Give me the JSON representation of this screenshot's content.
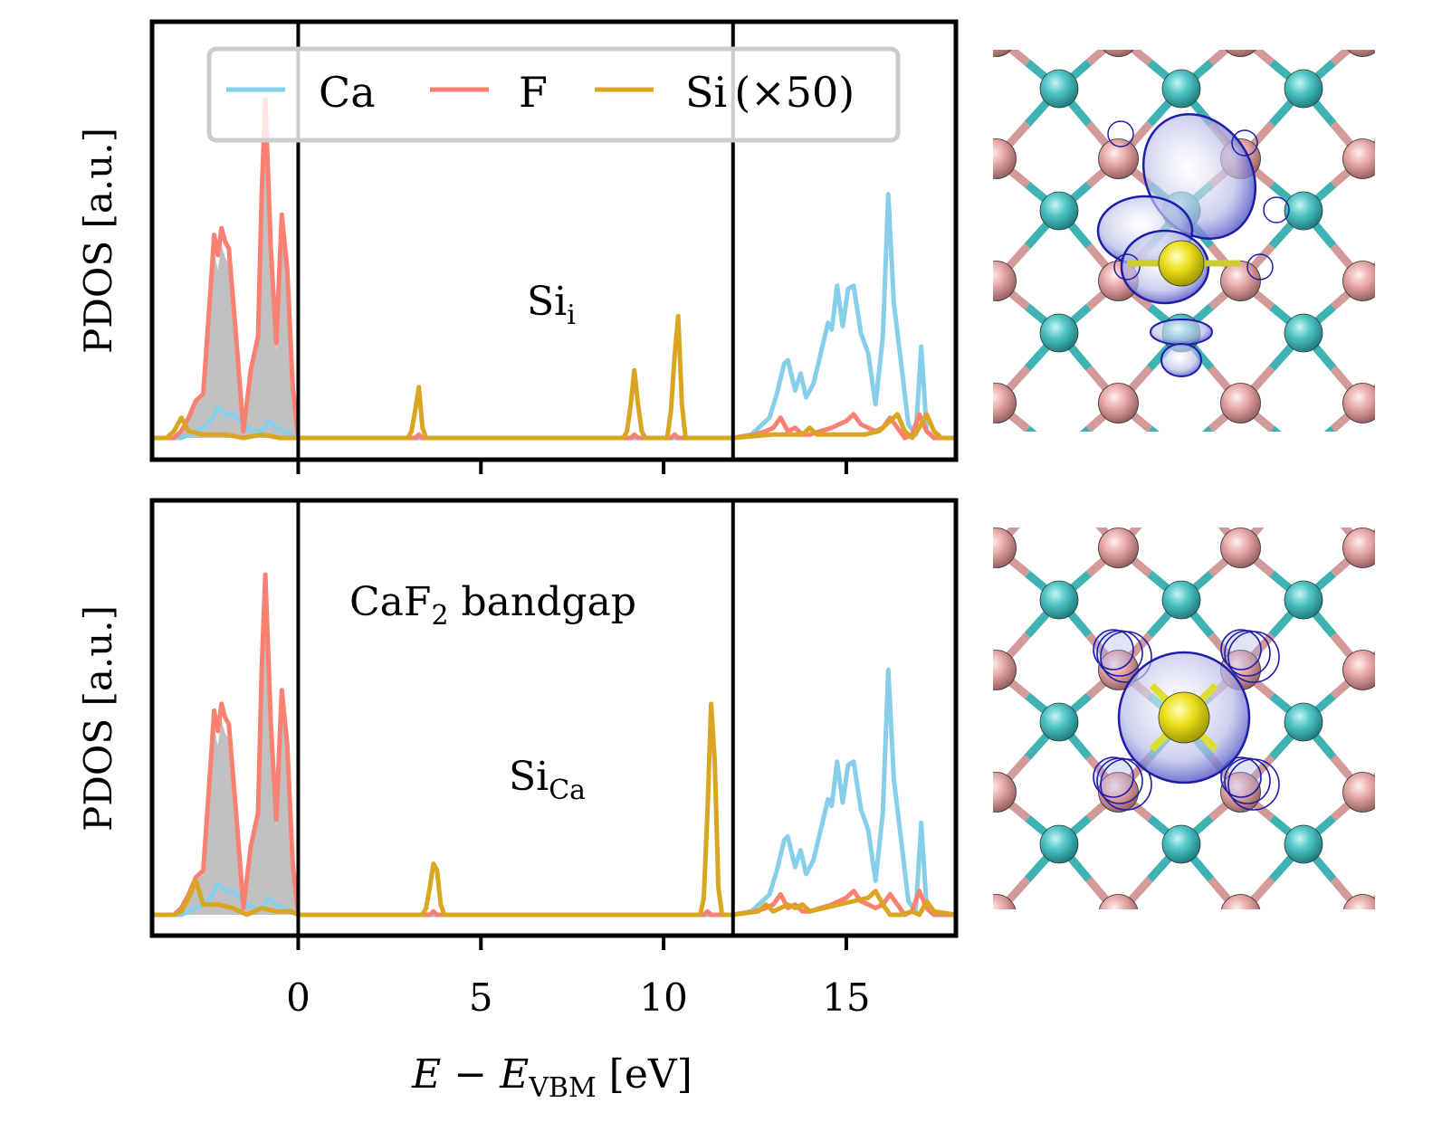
{
  "chart_data": [
    {
      "type": "line",
      "panel": "top",
      "annotation": {
        "base": "Si",
        "sub": "i"
      },
      "xlabel": {
        "main": "E − E",
        "sub": "VBM",
        "unit": " [eV]"
      },
      "ylabel": "PDOS [a.u.]",
      "xlim": [
        -4,
        18
      ],
      "ylim": [
        0,
        1
      ],
      "xticks": [
        0,
        5,
        10,
        15
      ],
      "vlines": [
        0,
        11.9
      ],
      "legend": {
        "placement": "top",
        "entries": [
          "Ca",
          "F",
          "Si (×50)"
        ]
      },
      "series": [
        {
          "name": "Ca",
          "color": "#87ceeb",
          "x": [
            -4,
            -3.2,
            -3.0,
            -2.8,
            -2.6,
            -2.4,
            -2.2,
            -2.0,
            -1.8,
            -1.6,
            -1.4,
            -1.2,
            -1.0,
            -0.8,
            -0.6,
            -0.4,
            -0.2,
            0,
            11.9,
            12.4,
            12.7,
            12.9,
            13.1,
            13.3,
            13.4,
            13.6,
            13.75,
            13.9,
            14.1,
            14.3,
            14.5,
            14.6,
            14.75,
            14.9,
            15.05,
            15.2,
            15.4,
            15.6,
            15.8,
            16.0,
            16.15,
            16.3,
            16.5,
            16.7,
            16.9,
            17.05,
            17.2,
            17.4,
            18
          ],
          "y": [
            0,
            0,
            0.01,
            0.02,
            0.03,
            0.05,
            0.09,
            0.07,
            0.07,
            0.05,
            0.03,
            0.02,
            0.02,
            0.05,
            0.03,
            0.02,
            0.01,
            0,
            0,
            0.01,
            0.04,
            0.06,
            0.13,
            0.22,
            0.23,
            0.14,
            0.19,
            0.12,
            0.16,
            0.25,
            0.34,
            0.32,
            0.45,
            0.33,
            0.44,
            0.45,
            0.31,
            0.25,
            0.1,
            0.3,
            0.72,
            0.4,
            0.22,
            0.04,
            0.01,
            0.27,
            0.02,
            0.0,
            0
          ]
        },
        {
          "name": "F",
          "color": "#fa8072",
          "x": [
            -4,
            -3.4,
            -3.2,
            -3.0,
            -2.8,
            -2.6,
            -2.4,
            -2.3,
            -2.2,
            -2.1,
            -2.0,
            -1.9,
            -1.7,
            -1.5,
            -1.3,
            -1.1,
            -1.0,
            -0.9,
            -0.75,
            -0.6,
            -0.45,
            -0.3,
            -0.15,
            0,
            3.2,
            3.3,
            3.4,
            9.1,
            9.2,
            9.3,
            10.2,
            10.3,
            10.4,
            11.9,
            12.5,
            12.8,
            13.0,
            13.2,
            13.4,
            13.6,
            13.8,
            14.0,
            14.3,
            14.6,
            14.8,
            15.0,
            15.2,
            15.4,
            15.6,
            15.8,
            16.0,
            16.2,
            16.4,
            16.6,
            16.8,
            17.0,
            17.2,
            17.4,
            18
          ],
          "y": [
            0,
            0,
            0.02,
            0.06,
            0.11,
            0.13,
            0.44,
            0.6,
            0.54,
            0.62,
            0.58,
            0.56,
            0.3,
            0.02,
            0.2,
            0.3,
            0.72,
            1.0,
            0.56,
            0.28,
            0.66,
            0.5,
            0.15,
            0,
            0,
            0.01,
            0,
            0,
            0.01,
            0,
            0,
            0.01,
            0,
            0,
            0.01,
            0.02,
            0.03,
            0.06,
            0.02,
            0.03,
            0.01,
            0.01,
            0.02,
            0.03,
            0.04,
            0.05,
            0.07,
            0.04,
            0.03,
            0.02,
            0.03,
            0.06,
            0.03,
            0.0,
            0.01,
            0.07,
            0.02,
            0.0,
            0
          ]
        },
        {
          "name": "Si (×50)",
          "color": "#daa520",
          "x": [
            -4,
            -3.6,
            -3.4,
            -3.2,
            -3.0,
            -2.6,
            -2.0,
            -1.5,
            -1.0,
            -0.5,
            0,
            3.0,
            3.1,
            3.2,
            3.3,
            3.4,
            3.5,
            8.9,
            9.0,
            9.1,
            9.2,
            9.3,
            9.4,
            9.5,
            10.1,
            10.2,
            10.3,
            10.4,
            10.5,
            10.6,
            11.9,
            13.0,
            13.8,
            14.0,
            14.2,
            15.0,
            15.5,
            15.9,
            16.2,
            16.4,
            16.6,
            16.8,
            17.0,
            17.2,
            17.4,
            17.6,
            18
          ],
          "y": [
            0,
            0,
            0.02,
            0.06,
            0.02,
            0.01,
            0.01,
            0.0,
            0.01,
            0.0,
            0,
            0,
            0.02,
            0.08,
            0.15,
            0.03,
            0,
            0,
            0.02,
            0.1,
            0.2,
            0.1,
            0.02,
            0,
            0,
            0.08,
            0.24,
            0.36,
            0.1,
            0,
            0,
            0.01,
            0.01,
            0.03,
            0.01,
            0.01,
            0.01,
            0.02,
            0.05,
            0.07,
            0.02,
            0.0,
            0.03,
            0.07,
            0.02,
            0.0,
            0
          ]
        }
      ]
    },
    {
      "type": "line",
      "panel": "bottom",
      "annotation": {
        "base": "Si",
        "sub": "Ca"
      },
      "gap_label": {
        "base": "CaF",
        "sub": "2",
        "rest": " bandgap"
      },
      "xlabel": {
        "main": "E − E",
        "sub": "VBM",
        "unit": " [eV]"
      },
      "ylabel": "PDOS [a.u.]",
      "xlim": [
        -4,
        18
      ],
      "ylim": [
        0,
        1
      ],
      "xticks": [
        0,
        5,
        10,
        15
      ],
      "xticklabels": [
        "0",
        "5",
        "10",
        "15"
      ],
      "vlines": [
        0,
        11.9
      ],
      "series": [
        {
          "name": "Ca",
          "color": "#87ceeb",
          "x": [
            -4,
            -3.2,
            -3.0,
            -2.8,
            -2.6,
            -2.4,
            -2.2,
            -2.0,
            -1.8,
            -1.6,
            -1.4,
            -1.2,
            -1.0,
            -0.8,
            -0.6,
            -0.4,
            -0.2,
            0,
            11.9,
            12.4,
            12.7,
            12.9,
            13.1,
            13.3,
            13.4,
            13.6,
            13.75,
            13.9,
            14.1,
            14.3,
            14.5,
            14.6,
            14.75,
            14.9,
            15.05,
            15.2,
            15.4,
            15.6,
            15.8,
            16.0,
            16.15,
            16.3,
            16.5,
            16.7,
            16.9,
            17.05,
            17.2,
            17.4,
            18
          ],
          "y": [
            0,
            0,
            0.01,
            0.02,
            0.03,
            0.05,
            0.09,
            0.07,
            0.07,
            0.05,
            0.03,
            0.02,
            0.02,
            0.05,
            0.03,
            0.02,
            0.01,
            0,
            0,
            0.01,
            0.04,
            0.06,
            0.13,
            0.22,
            0.23,
            0.14,
            0.19,
            0.12,
            0.16,
            0.25,
            0.34,
            0.32,
            0.45,
            0.33,
            0.44,
            0.45,
            0.31,
            0.25,
            0.1,
            0.3,
            0.72,
            0.4,
            0.22,
            0.04,
            0.01,
            0.27,
            0.02,
            0.0,
            0
          ]
        },
        {
          "name": "F",
          "color": "#fa8072",
          "x": [
            -4,
            -3.4,
            -3.2,
            -3.0,
            -2.8,
            -2.6,
            -2.4,
            -2.3,
            -2.2,
            -2.1,
            -2.0,
            -1.9,
            -1.7,
            -1.5,
            -1.3,
            -1.1,
            -1.0,
            -0.9,
            -0.75,
            -0.6,
            -0.45,
            -0.3,
            -0.15,
            0,
            3.6,
            3.7,
            3.8,
            11.1,
            11.2,
            11.3,
            11.9,
            12.5,
            12.8,
            13.0,
            13.2,
            13.4,
            13.6,
            13.8,
            14.0,
            14.3,
            14.6,
            14.8,
            15.0,
            15.2,
            15.4,
            15.6,
            15.8,
            16.0,
            16.2,
            16.4,
            16.6,
            16.8,
            17.0,
            17.2,
            17.4,
            18
          ],
          "y": [
            0,
            0,
            0.02,
            0.06,
            0.11,
            0.13,
            0.44,
            0.6,
            0.54,
            0.62,
            0.58,
            0.56,
            0.3,
            0.02,
            0.2,
            0.3,
            0.72,
            1.0,
            0.56,
            0.28,
            0.66,
            0.5,
            0.15,
            0,
            0,
            0.01,
            0,
            0,
            0.01,
            0,
            0,
            0.01,
            0.02,
            0.03,
            0.06,
            0.02,
            0.03,
            0.01,
            0.01,
            0.02,
            0.03,
            0.04,
            0.05,
            0.07,
            0.04,
            0.03,
            0.02,
            0.03,
            0.06,
            0.03,
            0.0,
            0.01,
            0.07,
            0.02,
            0.0,
            0
          ]
        },
        {
          "name": "Si (×50)",
          "color": "#daa520",
          "x": [
            -4,
            -3.4,
            -3.2,
            -3.0,
            -2.8,
            -2.6,
            -2.2,
            -1.8,
            -1.4,
            -1.0,
            -0.6,
            -0.2,
            0,
            3.4,
            3.5,
            3.6,
            3.7,
            3.8,
            3.9,
            4.0,
            11.0,
            11.1,
            11.2,
            11.3,
            11.4,
            11.5,
            11.6,
            11.9,
            12.6,
            12.8,
            13.0,
            13.2,
            13.4,
            13.6,
            13.8,
            14.0,
            14.4,
            14.8,
            15.2,
            15.6,
            15.8,
            16.0,
            16.2,
            16.5,
            16.8,
            17.0,
            17.2,
            17.4,
            18
          ],
          "y": [
            0,
            0,
            0.01,
            0.05,
            0.1,
            0.03,
            0.03,
            0.02,
            0.0,
            0.02,
            0.01,
            0.01,
            0,
            0,
            0.02,
            0.08,
            0.15,
            0.13,
            0.03,
            0,
            0,
            0.05,
            0.3,
            0.62,
            0.45,
            0.08,
            0,
            0,
            0.01,
            0.03,
            0.01,
            0.02,
            0.03,
            0.02,
            0.03,
            0.01,
            0.02,
            0.03,
            0.04,
            0.05,
            0.07,
            0.03,
            0.0,
            0.0,
            0.01,
            0.0,
            0.04,
            0.01,
            0
          ]
        }
      ]
    }
  ],
  "colors": {
    "ca": "#87ceeb",
    "f": "#fa8072",
    "si": "#daa520",
    "fill": "#c0c0c0",
    "ca_atom": "#4fc4c4",
    "f_atom": "#e8a8a8",
    "si_atom": "#eee020",
    "orbital": "#1e1ea8"
  },
  "legend_labels": {
    "ca": "Ca",
    "f": "F",
    "si_base": "Si",
    "si_scale": "(×50)"
  },
  "structures": [
    {
      "name": "Si-interstitial-structure",
      "defect": "Si_i"
    },
    {
      "name": "Si-Ca-substitution-structure",
      "defect": "Si_Ca"
    }
  ]
}
